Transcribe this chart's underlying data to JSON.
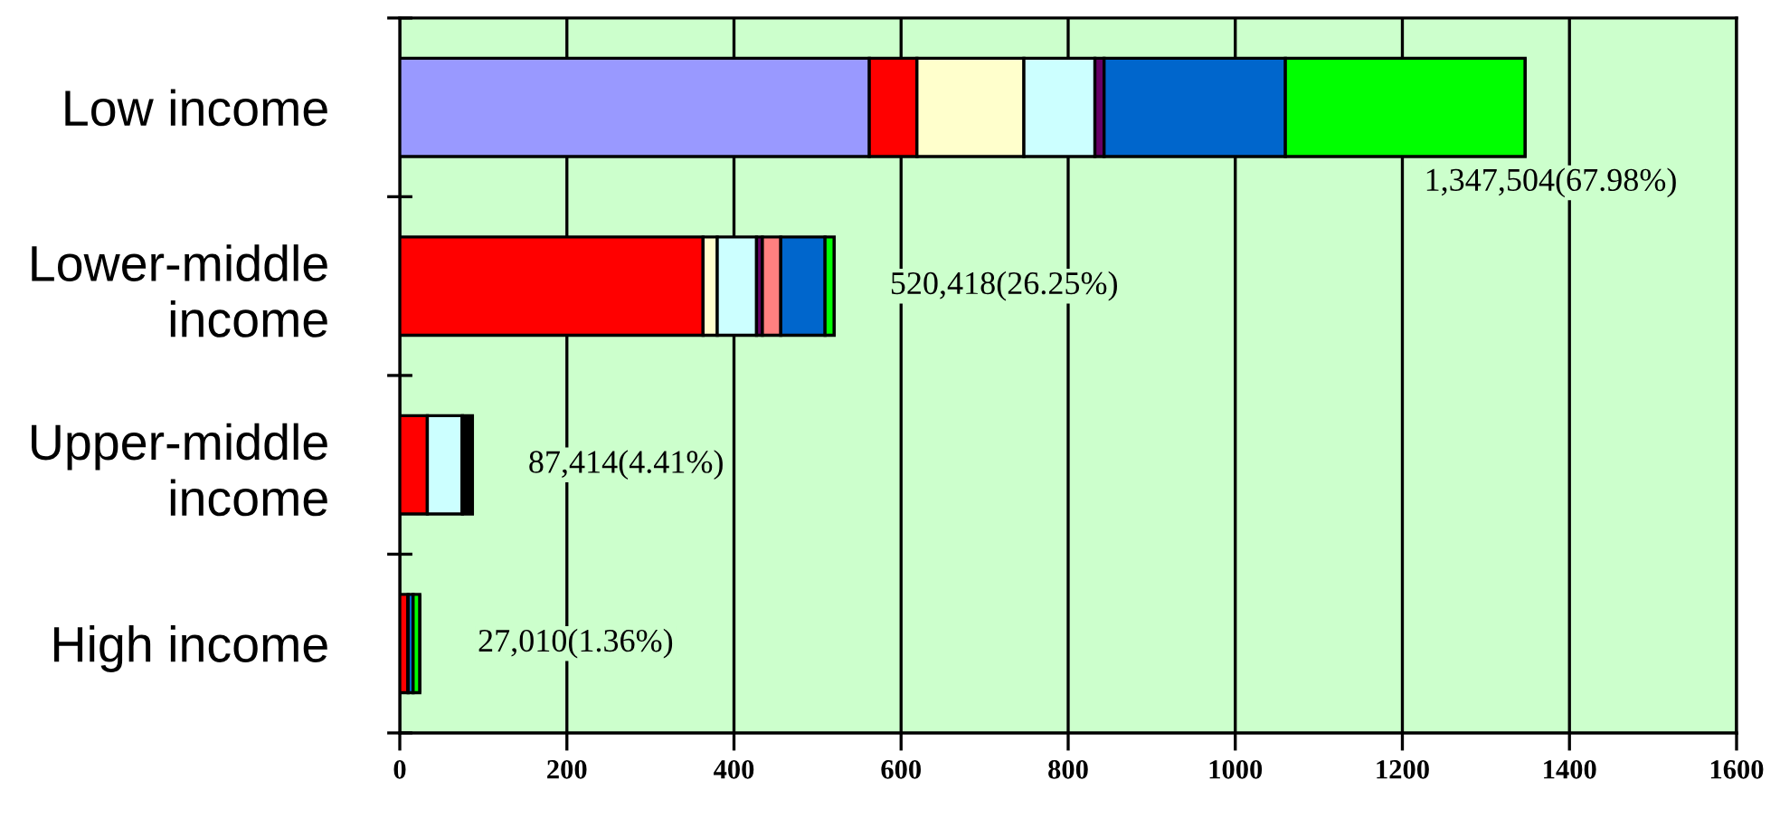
{
  "chart_data": {
    "type": "bar",
    "orientation": "horizontal",
    "stacked": true,
    "categories": [
      "Low income",
      "Lower-middle\nincome",
      "Upper-middle\nincome",
      "High income"
    ],
    "series": [
      {
        "color": "#9999ff",
        "values": [
          562,
          0,
          0,
          0
        ]
      },
      {
        "color": "#ff0000",
        "values": [
          57,
          363,
          33,
          10
        ]
      },
      {
        "color": "#ffffcc",
        "values": [
          128,
          17,
          0,
          0
        ]
      },
      {
        "color": "#ccffff",
        "values": [
          85,
          47,
          42,
          0
        ]
      },
      {
        "color": "#660066",
        "values": [
          11,
          7,
          0,
          null
        ]
      },
      {
        "color": "#ff8080",
        "values": [
          0,
          22,
          0,
          0
        ]
      },
      {
        "color": "#0066cc",
        "values": [
          217,
          53,
          0,
          6
        ]
      },
      {
        "color": "#00ff00",
        "values": [
          287,
          11,
          0,
          8
        ]
      },
      {
        "color": "#000000",
        "values": [
          0,
          0,
          12,
          0
        ]
      }
    ],
    "xlim": [
      0,
      1600
    ],
    "xticks": [
      0,
      200,
      400,
      600,
      800,
      1000,
      1200,
      1400,
      1600
    ],
    "grid": "x",
    "annotations": [
      {
        "text": "1,347,504(67.98%)",
        "x": 1347.5,
        "y": "Low income"
      },
      {
        "text": "520,418(26.25%)",
        "x": 520.4,
        "y": "Lower-middle\nincome"
      },
      {
        "text": "87,414(4.41%)",
        "x": 87.4,
        "y": "Upper-middle\nincome"
      },
      {
        "text": "27,010(1.36%)",
        "x": 27.0,
        "y": "High income"
      }
    ]
  }
}
